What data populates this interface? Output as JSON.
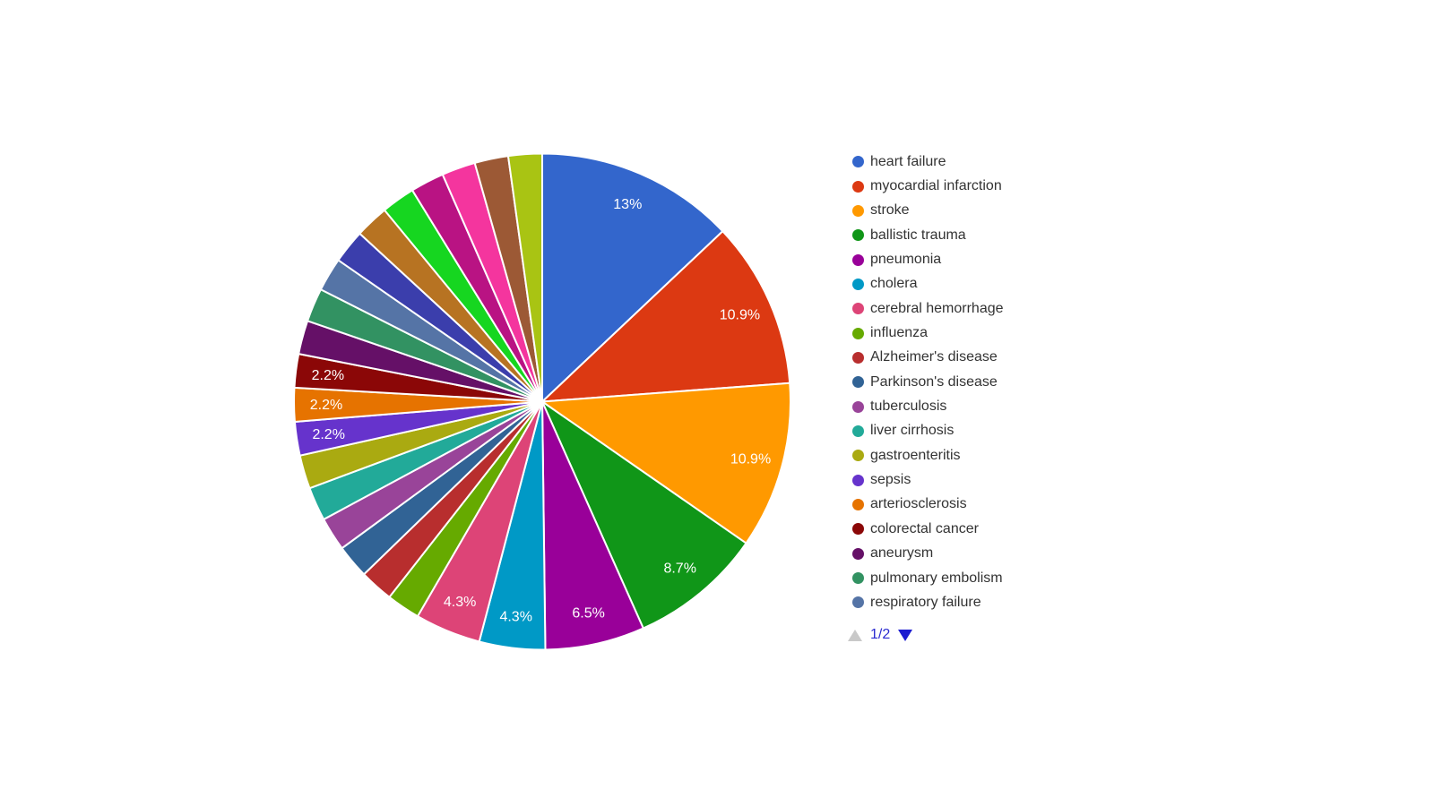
{
  "chart_data": {
    "type": "pie",
    "legend_position": "right",
    "background_color": "#ffffff",
    "slice_label_color": "#ffffff",
    "slice_border_color": "#ffffff",
    "slices": [
      {
        "name": "heart failure",
        "percent": 13.0,
        "label": "13%",
        "color": "#3366CC"
      },
      {
        "name": "myocardial infarction",
        "percent": 10.9,
        "label": "10.9%",
        "color": "#DC3912"
      },
      {
        "name": "stroke",
        "percent": 10.9,
        "label": "10.9%",
        "color": "#FF9900"
      },
      {
        "name": "ballistic trauma",
        "percent": 8.7,
        "label": "8.7%",
        "color": "#109618"
      },
      {
        "name": "pneumonia",
        "percent": 6.5,
        "label": "6.5%",
        "color": "#990099"
      },
      {
        "name": "cholera",
        "percent": 4.3,
        "label": "4.3%",
        "color": "#0099C6"
      },
      {
        "name": "cerebral hemorrhage",
        "percent": 4.3,
        "label": "4.3%",
        "color": "#DD4477"
      },
      {
        "name": "influenza",
        "percent": 2.2,
        "label": "",
        "color": "#66AA00"
      },
      {
        "name": "Alzheimer's disease",
        "percent": 2.2,
        "label": "",
        "color": "#B82E2E"
      },
      {
        "name": "Parkinson's disease",
        "percent": 2.2,
        "label": "",
        "color": "#316395"
      },
      {
        "name": "tuberculosis",
        "percent": 2.2,
        "label": "",
        "color": "#994499"
      },
      {
        "name": "liver cirrhosis",
        "percent": 2.2,
        "label": "",
        "color": "#22AA99"
      },
      {
        "name": "gastroenteritis",
        "percent": 2.2,
        "label": "",
        "color": "#AAAA11"
      },
      {
        "name": "sepsis",
        "percent": 2.2,
        "label": "2.2%",
        "color": "#6633CC"
      },
      {
        "name": "arteriosclerosis",
        "percent": 2.2,
        "label": "2.2%",
        "color": "#E67300"
      },
      {
        "name": "colorectal cancer",
        "percent": 2.2,
        "label": "2.2%",
        "color": "#8B0707"
      },
      {
        "name": "aneurysm",
        "percent": 2.2,
        "label": "",
        "color": "#651067"
      },
      {
        "name": "pulmonary embolism",
        "percent": 2.2,
        "label": "",
        "color": "#329262"
      },
      {
        "name": "respiratory failure",
        "percent": 2.2,
        "label": "",
        "color": "#5574A6"
      },
      {
        "name": "",
        "percent": 2.2,
        "label": "",
        "color": "#3B3EAC"
      },
      {
        "name": "",
        "percent": 2.2,
        "label": "",
        "color": "#B77322"
      },
      {
        "name": "",
        "percent": 2.2,
        "label": "",
        "color": "#16D620"
      },
      {
        "name": "",
        "percent": 2.2,
        "label": "",
        "color": "#B91383"
      },
      {
        "name": "",
        "percent": 2.2,
        "label": "",
        "color": "#F4359E"
      },
      {
        "name": "",
        "percent": 2.2,
        "label": "",
        "color": "#9C5935"
      },
      {
        "name": "",
        "percent": 2.2,
        "label": "",
        "color": "#A9C413"
      }
    ]
  },
  "legend": {
    "text_color": "#333333",
    "items": [
      {
        "label": "heart failure",
        "color": "#3366CC"
      },
      {
        "label": "myocardial infarction",
        "color": "#DC3912"
      },
      {
        "label": "stroke",
        "color": "#FF9900"
      },
      {
        "label": "ballistic trauma",
        "color": "#109618"
      },
      {
        "label": "pneumonia",
        "color": "#990099"
      },
      {
        "label": "cholera",
        "color": "#0099C6"
      },
      {
        "label": "cerebral hemorrhage",
        "color": "#DD4477"
      },
      {
        "label": "influenza",
        "color": "#66AA00"
      },
      {
        "label": "Alzheimer's disease",
        "color": "#B82E2E"
      },
      {
        "label": "Parkinson's disease",
        "color": "#316395"
      },
      {
        "label": "tuberculosis",
        "color": "#994499"
      },
      {
        "label": "liver cirrhosis",
        "color": "#22AA99"
      },
      {
        "label": "gastroenteritis",
        "color": "#AAAA11"
      },
      {
        "label": "sepsis",
        "color": "#6633CC"
      },
      {
        "label": "arteriosclerosis",
        "color": "#E67300"
      },
      {
        "label": "colorectal cancer",
        "color": "#8B0707"
      },
      {
        "label": "aneurysm",
        "color": "#651067"
      },
      {
        "label": "pulmonary embolism",
        "color": "#329262"
      },
      {
        "label": "respiratory failure",
        "color": "#5574A6"
      }
    ],
    "pagination": {
      "label": "1/2",
      "up_arrow_color": "#c9c9c9",
      "down_arrow_color": "#1c1cd1",
      "text_color": "#2b2bd0"
    }
  }
}
